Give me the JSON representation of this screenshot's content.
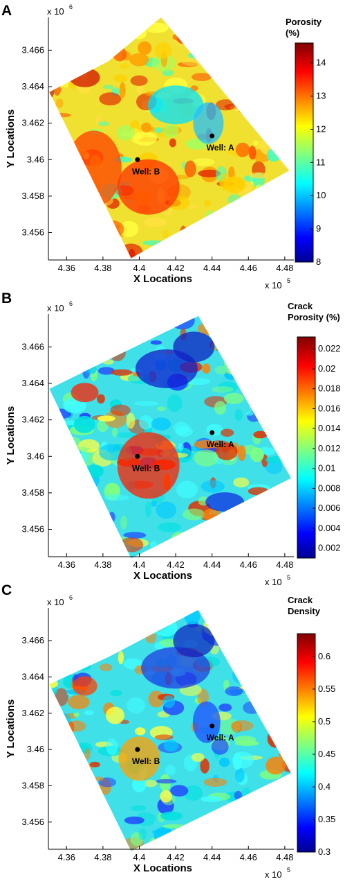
{
  "chart_data": [
    {
      "type": "heatmap",
      "panel_label": "A",
      "xlabel": "X Locations",
      "ylabel": "Y Locations",
      "x_multiplier": "x 10",
      "x_exponent": "5",
      "y_multiplier": "x 10",
      "y_exponent": "6",
      "xlim": [
        4.35,
        4.485
      ],
      "ylim": [
        3.4545,
        3.4678
      ],
      "x_ticks": [
        "4.36",
        "4.38",
        "4.4",
        "4.42",
        "4.44",
        "4.46",
        "4.48"
      ],
      "y_ticks": [
        "3.456",
        "3.458",
        "3.46",
        "3.462",
        "3.464",
        "3.466"
      ],
      "colorbar_title": [
        "Porosity",
        "(%)"
      ],
      "colorbar_range": [
        8,
        14.6
      ],
      "colorbar_ticks": [
        "8",
        "9",
        "10",
        "11",
        "12",
        "13",
        "14"
      ],
      "wells": [
        {
          "name": "Well: A",
          "x": 4.44,
          "y": 3.4613
        },
        {
          "name": "Well: B",
          "x": 4.399,
          "y": 3.46
        }
      ],
      "colors": {
        "low": "#00008f",
        "mid": "#00ffff",
        "high": "#800000",
        "dominant": "#f0e030"
      }
    },
    {
      "type": "heatmap",
      "panel_label": "B",
      "xlabel": "X Locations",
      "ylabel": "Y Locations",
      "x_multiplier": "x 10",
      "x_exponent": "5",
      "y_multiplier": "x 10",
      "y_exponent": "6",
      "xlim": [
        4.35,
        4.485
      ],
      "ylim": [
        3.4545,
        3.4678
      ],
      "x_ticks": [
        "4.36",
        "4.38",
        "4.4",
        "4.42",
        "4.44",
        "4.46",
        "4.48"
      ],
      "y_ticks": [
        "3.456",
        "3.458",
        "3.46",
        "3.462",
        "3.464",
        "3.466"
      ],
      "colorbar_title": [
        "Crack",
        "Porosity (%)"
      ],
      "colorbar_range": [
        0.001,
        0.0232
      ],
      "colorbar_ticks": [
        "0.002",
        "0.004",
        "0.006",
        "0.008",
        "0.01",
        "0.012",
        "0.014",
        "0.016",
        "0.018",
        "0.02",
        "0.022"
      ],
      "wells": [
        {
          "name": "Well: A",
          "x": 4.44,
          "y": 3.4613
        },
        {
          "name": "Well: B",
          "x": 4.399,
          "y": 3.46
        }
      ],
      "colors": {
        "low": "#00008f",
        "mid": "#00ffff",
        "high": "#800000",
        "dominant": "#40e0e8"
      }
    },
    {
      "type": "heatmap",
      "panel_label": "C",
      "xlabel": "X Locations",
      "ylabel": "Y Locations",
      "x_multiplier": "x 10",
      "x_exponent": "5",
      "y_multiplier": "x 10",
      "y_exponent": "6",
      "xlim": [
        4.35,
        4.485
      ],
      "ylim": [
        3.4545,
        3.4678
      ],
      "x_ticks": [
        "4.36",
        "4.38",
        "4.4",
        "4.42",
        "4.44",
        "4.46",
        "4.48"
      ],
      "y_ticks": [
        "3.456",
        "3.458",
        "3.46",
        "3.462",
        "3.464",
        "3.466"
      ],
      "colorbar_title": [
        "Crack",
        "Density"
      ],
      "colorbar_range": [
        0.3,
        0.635
      ],
      "colorbar_ticks": [
        "0.3",
        "0.35",
        "0.4",
        "0.45",
        "0.5",
        "0.55",
        "0.6"
      ],
      "wells": [
        {
          "name": "Well: A",
          "x": 4.44,
          "y": 3.4613
        },
        {
          "name": "Well: B",
          "x": 4.399,
          "y": 3.46
        }
      ],
      "colors": {
        "low": "#00008f",
        "mid": "#00ffff",
        "high": "#800000",
        "dominant": "#40e0e8"
      }
    }
  ]
}
